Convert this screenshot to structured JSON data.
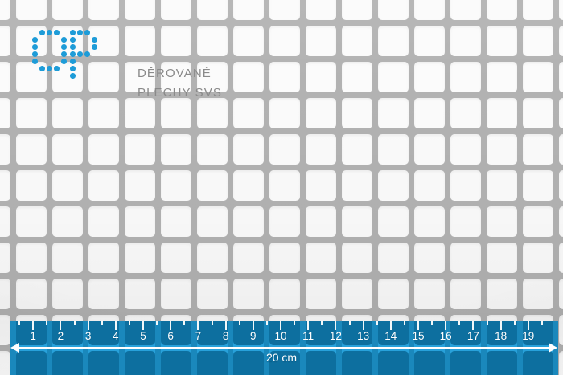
{
  "logo": {
    "monogram": "DP",
    "name_line1": "DĚROVANÉ",
    "name_line2": "PLECHY SVS"
  },
  "ruler": {
    "tick_numbers": [
      1,
      2,
      3,
      4,
      5,
      6,
      7,
      8,
      9,
      10,
      11,
      12,
      13,
      14,
      15,
      16,
      17,
      18,
      19
    ],
    "length_label": "20 cm"
  },
  "colors": {
    "brand-blue": "#1e9cd8",
    "logo-text-gray": "#8a8a8a",
    "mesh-bar": "#b2b2b2",
    "mesh-hole": "#fbfbfb",
    "band-bar": "#28a1da",
    "band-vbar": "#1a88bc",
    "band-hole": "#0d6f9f",
    "ruler-white": "#ffffff"
  }
}
